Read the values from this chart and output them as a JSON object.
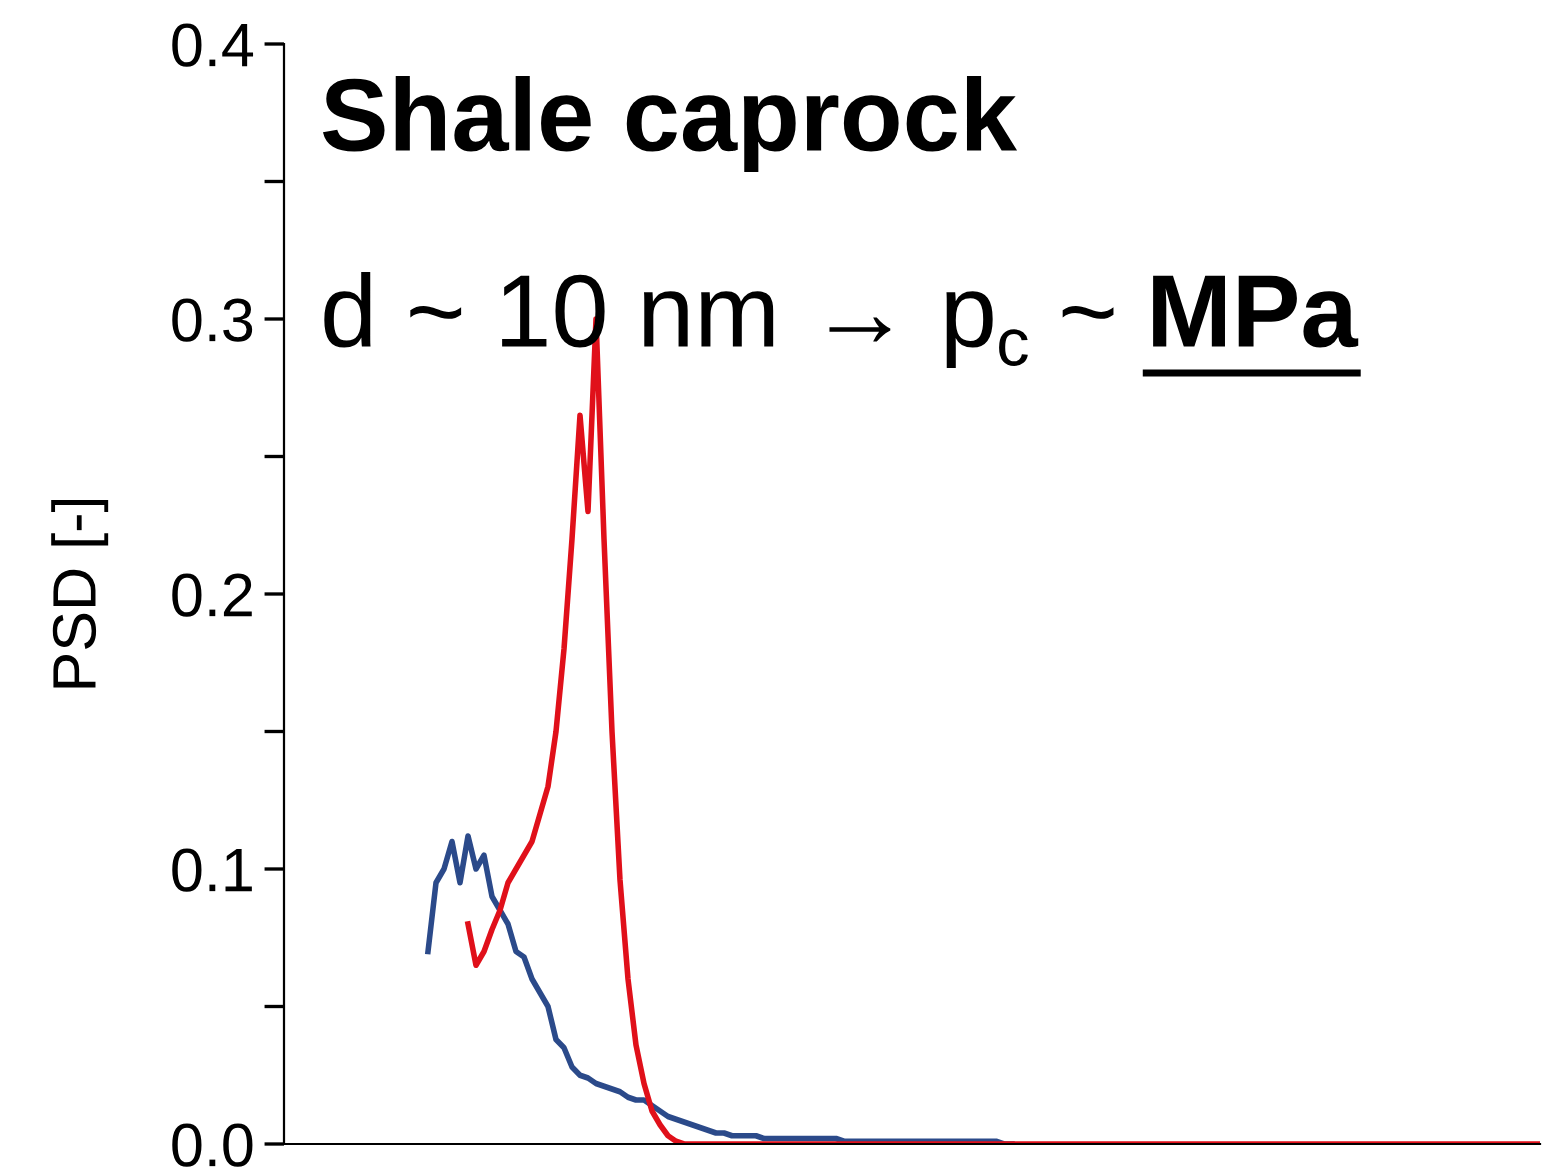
{
  "chart_data": {
    "type": "line",
    "title": "Shale caprock",
    "ylabel": "PSD [-]",
    "annotations": [
      "d ~ 10 nm → p$_{c}$ ~",
      "MPa"
    ],
    "categories": [
      null,
      null,
      null,
      null,
      null,
      null,
      null,
      null,
      null,
      null,
      null,
      null,
      null,
      null,
      null,
      null,
      null,
      null,
      null,
      null,
      null,
      null,
      null,
      null,
      null,
      null,
      null,
      null,
      null,
      null,
      null,
      null,
      null,
      null,
      null,
      null,
      null,
      null,
      null,
      null,
      null,
      null,
      null,
      null,
      null,
      null,
      null,
      null,
      null,
      null,
      null,
      null,
      null,
      null,
      null,
      null,
      null,
      null,
      null,
      null,
      null,
      null,
      null,
      null,
      null,
      null,
      null,
      null,
      null,
      null,
      null,
      null,
      null,
      null,
      null,
      null,
      null,
      null,
      null,
      null,
      null,
      null,
      null,
      null,
      null,
      null,
      null,
      null,
      null,
      null,
      null,
      null,
      null,
      null,
      null,
      null,
      null,
      null,
      null,
      null,
      null,
      null,
      null,
      null,
      null,
      null,
      null,
      null,
      null,
      null,
      null,
      null,
      null,
      null,
      null,
      null,
      null,
      null,
      null,
      null,
      null,
      null,
      null,
      null,
      null,
      null,
      null,
      null,
      null,
      null,
      null,
      null,
      null,
      null,
      null,
      null,
      null,
      null,
      null,
      null,
      null,
      null,
      null,
      null,
      null,
      null,
      null,
      null,
      null,
      null,
      null,
      null,
      null,
      null,
      null,
      null,
      null,
      null
    ],
    "series": [
      {
        "color": "#2b4a8a",
        "values": [
          null,
          null,
          null,
          null,
          null,
          null,
          null,
          null,
          null,
          null,
          null,
          null,
          null,
          null,
          null,
          null,
          null,
          null,
          0.07,
          0.095,
          0.1,
          0.11,
          0.095,
          0.112,
          0.1,
          0.105,
          0.09,
          0.085,
          0.08,
          0.07,
          0.068,
          0.06,
          0.055,
          0.05,
          0.038,
          0.035,
          0.028,
          0.025,
          0.024,
          0.022,
          0.021,
          0.02,
          0.019,
          0.017,
          0.016,
          0.016,
          0.014,
          0.012,
          0.01,
          0.009,
          0.008,
          0.007,
          0.006,
          0.005,
          0.004,
          0.004,
          0.003,
          0.003,
          0.003,
          0.003,
          0.002,
          0.002,
          0.002,
          0.002,
          0.002,
          0.002,
          0.002,
          0.002,
          0.002,
          0.002,
          0.001,
          0.001,
          0.001,
          0.001,
          0.001,
          0.001,
          0.001,
          0.001,
          0.001,
          0.001,
          0.001,
          0.001,
          0.001,
          0.001,
          0.001,
          0.001,
          0.001,
          0.001,
          0.001,
          0.001,
          0,
          0,
          null,
          null,
          null,
          null,
          null,
          null,
          null,
          null,
          null,
          null,
          null,
          null,
          null,
          null,
          null,
          null,
          null,
          null,
          null,
          null,
          null,
          null,
          null,
          null,
          null,
          null,
          null,
          null,
          null,
          null,
          null,
          null,
          null,
          null,
          null,
          null,
          null,
          null,
          null,
          null,
          null,
          null,
          null,
          null,
          null,
          null,
          null,
          null,
          null,
          null,
          null,
          null,
          null,
          null,
          null,
          null,
          null,
          null,
          null,
          null,
          null,
          null,
          null,
          null,
          null,
          null
        ]
      },
      {
        "color": "#e0101a",
        "values": [
          null,
          null,
          null,
          null,
          null,
          null,
          null,
          null,
          null,
          null,
          null,
          null,
          null,
          null,
          null,
          null,
          null,
          null,
          null,
          null,
          null,
          null,
          null,
          0.08,
          0.065,
          0.07,
          0.078,
          0.085,
          0.095,
          0.1,
          0.105,
          0.11,
          0.12,
          0.13,
          0.15,
          0.18,
          0.22,
          0.265,
          0.23,
          0.3,
          0.22,
          0.15,
          0.096,
          0.06,
          0.036,
          0.022,
          0.012,
          0.007,
          0.003,
          0.001,
          0,
          0,
          0,
          0,
          0,
          0,
          0,
          0,
          0,
          0,
          0,
          0,
          0,
          0,
          0,
          0,
          0,
          0,
          0,
          0,
          0,
          0,
          0,
          0,
          0,
          0,
          0,
          0,
          0,
          0,
          0,
          0,
          0,
          0,
          0,
          0,
          0,
          0,
          0,
          0,
          0,
          0,
          0,
          0,
          0,
          0,
          0,
          0,
          0,
          0,
          0,
          0,
          0,
          0,
          0,
          0,
          0,
          0,
          0,
          0,
          0,
          0,
          0,
          0,
          0,
          0,
          0,
          0,
          0,
          0,
          0,
          0,
          0,
          0,
          0,
          0,
          0,
          0,
          0,
          0,
          0,
          0,
          0,
          0,
          0,
          0,
          0,
          0,
          0,
          0,
          0,
          0,
          0,
          0,
          0,
          0,
          0,
          0,
          0,
          0,
          0,
          0,
          0,
          0,
          0,
          0,
          0,
          0
        ]
      }
    ],
    "ylim": [
      0,
      0.4
    ],
    "yticks": [
      "0.0",
      {
        "value": 0.05,
        "label": null
      },
      0.1,
      {
        "value": 0.15,
        "label": null
      },
      0.2,
      {
        "value": 0.25,
        "label": null
      },
      0.3,
      {
        "value": 0.35,
        "label": null
      },
      0.4
    ],
    "tick_labels": "y",
    "grid": false,
    "legend": false
  }
}
